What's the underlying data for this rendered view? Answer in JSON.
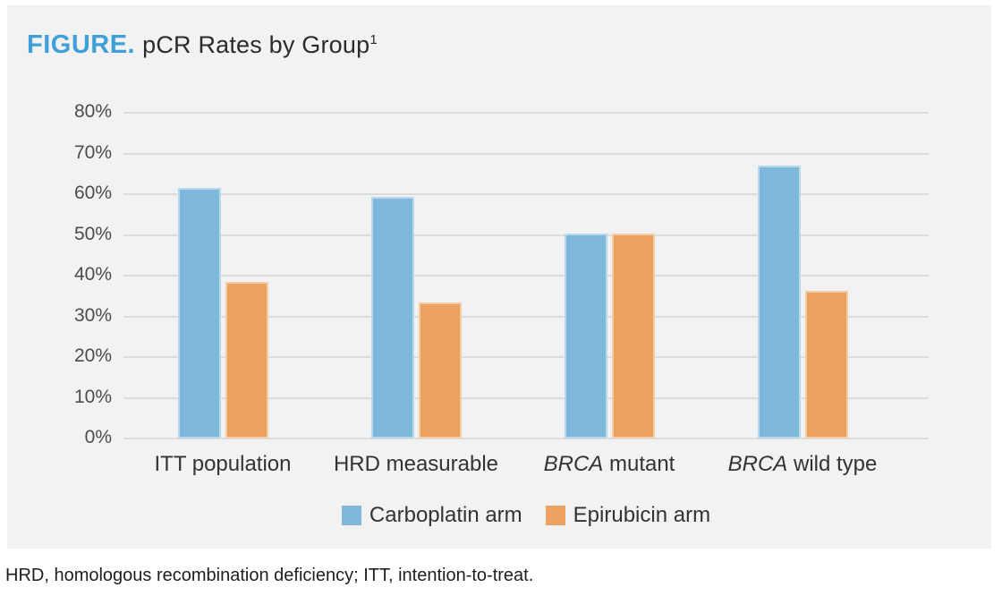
{
  "header": {
    "kicker": "FIGURE.",
    "title": "pCR Rates by Group",
    "footnote_marker": "1"
  },
  "footnote": "HRD, homologous recombination deficiency; ITT, intention-to-treat.",
  "colors": {
    "accent_blue": "#3f9fd8",
    "carboplatin_bar": "#7fb8dc",
    "epirubicin_bar": "#eba35f",
    "gridline": "#dcdcdd",
    "panel_background": "#f2f2f3"
  },
  "chart_data": {
    "type": "bar",
    "title": "pCR Rates by Group",
    "categories": [
      {
        "italic": "",
        "text": "ITT population"
      },
      {
        "italic": "",
        "text": "HRD measurable"
      },
      {
        "italic": "BRCA",
        "text": " mutant"
      },
      {
        "italic": "BRCA",
        "text": " wild type"
      }
    ],
    "series": [
      {
        "name": "Carboplatin arm",
        "color": "#7fb8dc",
        "values": [
          61.5,
          59.3,
          50.3,
          67.0
        ]
      },
      {
        "name": "Epirubicin arm",
        "color": "#eba35f",
        "values": [
          38.5,
          33.3,
          50.3,
          36.3
        ]
      }
    ],
    "xlabel": "",
    "ylabel": "",
    "ylim": [
      0,
      80
    ],
    "ytick_step": 10,
    "ytick_suffix": "%",
    "grid": true,
    "legend_position": "bottom"
  }
}
